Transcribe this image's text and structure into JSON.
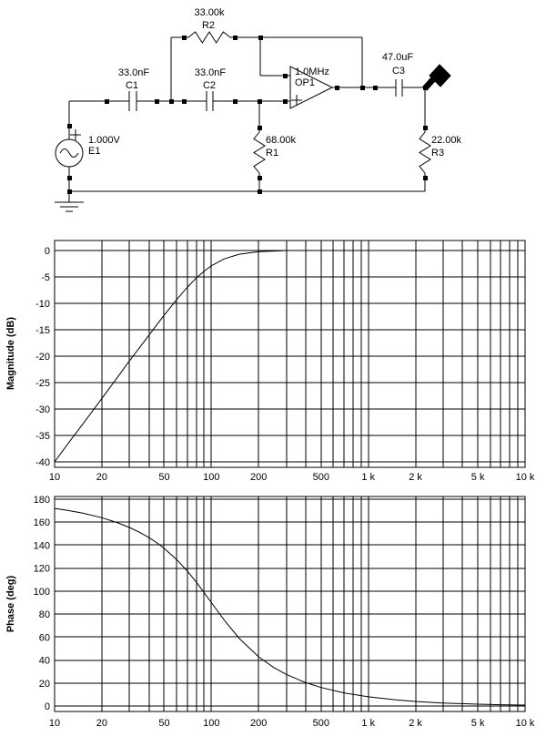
{
  "app": {
    "background_color": "#ffffff",
    "line_color": "#000000"
  },
  "schematic": {
    "components": [
      {
        "id": "E1",
        "type": "ac-voltage-source",
        "value": "1.000V",
        "name": "E1"
      },
      {
        "id": "C1",
        "type": "capacitor",
        "value": "33.0nF",
        "name": "C1"
      },
      {
        "id": "C2",
        "type": "capacitor",
        "value": "33.0nF",
        "name": "C2"
      },
      {
        "id": "R2",
        "type": "resistor",
        "value": "33.00k",
        "name": "R2"
      },
      {
        "id": "R1",
        "type": "resistor",
        "value": "68.00k",
        "name": "R1"
      },
      {
        "id": "OP1",
        "type": "opamp",
        "value": "1.0MHz",
        "name": "OP1"
      },
      {
        "id": "C3",
        "type": "capacitor",
        "value": "47.0uF",
        "name": "C3"
      },
      {
        "id": "R3",
        "type": "resistor",
        "value": "22.00k",
        "name": "R3"
      }
    ]
  },
  "chart_data": [
    {
      "type": "line",
      "title": "",
      "xlabel": "",
      "ylabel": "Magnitude (dB)",
      "x_scale": "log",
      "x_range": [
        10,
        10000
      ],
      "ylim": [
        -40,
        0
      ],
      "grid": "on",
      "x_tick_values": [
        10,
        20,
        50,
        100,
        200,
        500,
        1000,
        2000,
        5000,
        10000
      ],
      "x_tick_labels": [
        "10",
        "20",
        "50",
        "100",
        "200",
        "500",
        "1 k",
        "2 k",
        "5 k",
        "10 k"
      ],
      "y_tick_values": [
        0,
        -5,
        -10,
        -15,
        -20,
        -25,
        -30,
        -35,
        -40
      ],
      "y_tick_labels": [
        "0",
        "-5",
        "-10",
        "-15",
        "-20",
        "-25",
        "-30",
        "-35",
        "-40"
      ],
      "series": [
        {
          "name": "magnitude",
          "points": [
            [
              10,
              -40
            ],
            [
              12,
              -36.8
            ],
            [
              15,
              -33
            ],
            [
              20,
              -28
            ],
            [
              25,
              -24.1
            ],
            [
              30,
              -20.9
            ],
            [
              35,
              -18.3
            ],
            [
              40,
              -16
            ],
            [
              45,
              -14
            ],
            [
              50,
              -12.2
            ],
            [
              60,
              -9.3
            ],
            [
              70,
              -7
            ],
            [
              80,
              -5.2
            ],
            [
              90,
              -3.9
            ],
            [
              100,
              -2.9
            ],
            [
              120,
              -1.6
            ],
            [
              150,
              -0.7
            ],
            [
              200,
              -0.2
            ],
            [
              250,
              -0.1
            ],
            [
              300,
              0
            ],
            [
              400,
              0
            ],
            [
              500,
              0
            ],
            [
              700,
              0
            ],
            [
              1000,
              0
            ],
            [
              2000,
              0
            ],
            [
              5000,
              0
            ],
            [
              10000,
              0
            ]
          ]
        }
      ]
    },
    {
      "type": "line",
      "title": "",
      "xlabel": "",
      "ylabel": "Phase (deg)",
      "x_scale": "log",
      "x_range": [
        10,
        10000
      ],
      "ylim": [
        0,
        180
      ],
      "grid": "on",
      "x_tick_values": [
        10,
        20,
        50,
        100,
        200,
        500,
        1000,
        2000,
        5000,
        10000
      ],
      "x_tick_labels": [
        "10",
        "20",
        "50",
        "100",
        "200",
        "500",
        "1 k",
        "2 k",
        "5 k",
        "10 k"
      ],
      "y_tick_values": [
        180,
        160,
        140,
        120,
        100,
        80,
        60,
        40,
        20,
        0
      ],
      "y_tick_labels": [
        "180",
        "160",
        "140",
        "120",
        "100",
        "80",
        "60",
        "40",
        "20",
        "0"
      ],
      "series": [
        {
          "name": "phase",
          "points": [
            [
              10,
              172
            ],
            [
              12,
              170.4
            ],
            [
              15,
              168
            ],
            [
              20,
              163.9
            ],
            [
              25,
              159.7
            ],
            [
              30,
              155.4
            ],
            [
              35,
              151
            ],
            [
              40,
              146.5
            ],
            [
              45,
              141.9
            ],
            [
              50,
              137.2
            ],
            [
              60,
              127.5
            ],
            [
              70,
              117.7
            ],
            [
              80,
              108
            ],
            [
              90,
              98.6
            ],
            [
              100,
              90
            ],
            [
              120,
              75.2
            ],
            [
              150,
              59
            ],
            [
              200,
              42.8
            ],
            [
              250,
              33.5
            ],
            [
              300,
              27.5
            ],
            [
              400,
              20.3
            ],
            [
              500,
              16.1
            ],
            [
              700,
              11.4
            ],
            [
              1000,
              8
            ],
            [
              1500,
              5.3
            ],
            [
              2000,
              4
            ],
            [
              3000,
              2.65
            ],
            [
              5000,
              1.6
            ],
            [
              7000,
              1.1
            ],
            [
              10000,
              0.8
            ]
          ]
        }
      ]
    }
  ]
}
